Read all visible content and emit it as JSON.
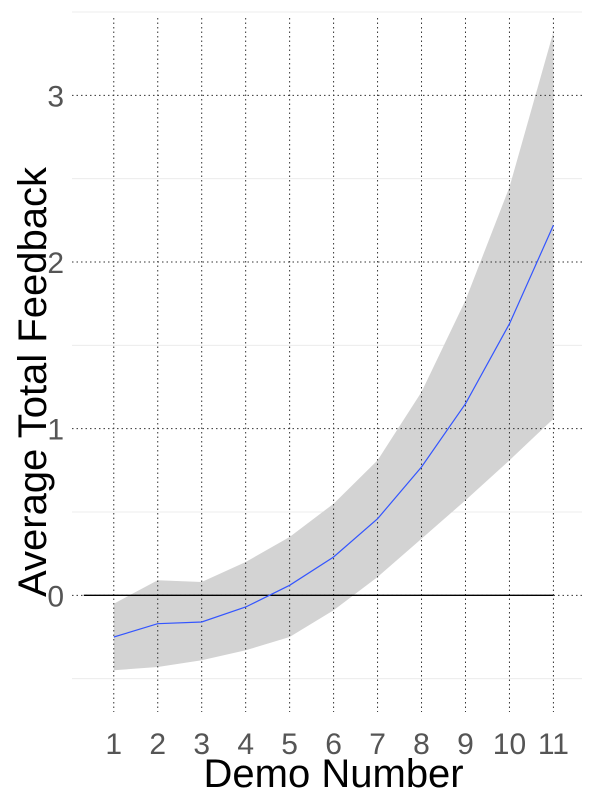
{
  "chart_data": {
    "type": "line",
    "title": "",
    "xlabel": "Demo Number",
    "ylabel": "Average Total Feedback",
    "x": [
      1,
      2,
      3,
      4,
      5,
      6,
      7,
      8,
      9,
      10,
      11
    ],
    "x_tick_labels": [
      "1",
      "2",
      "3",
      "4",
      "5",
      "6",
      "7",
      "8",
      "9",
      "10",
      "11"
    ],
    "y_tick_labels": [
      "0",
      "1",
      "2",
      "3"
    ],
    "y_ticks": [
      0,
      1,
      2,
      3
    ],
    "xlim": [
      0.05,
      11.65
    ],
    "ylim": [
      -0.7,
      3.5
    ],
    "reference_line_y": 0,
    "series": [
      {
        "values": [
          -0.25,
          -0.17,
          -0.16,
          -0.07,
          0.06,
          0.23,
          0.46,
          0.77,
          1.15,
          1.63,
          2.22
        ],
        "lower": [
          -0.45,
          -0.43,
          -0.39,
          -0.33,
          -0.25,
          -0.09,
          0.11,
          0.34,
          0.57,
          0.81,
          1.06
        ],
        "upper": [
          -0.05,
          0.09,
          0.08,
          0.2,
          0.35,
          0.55,
          0.81,
          1.22,
          1.77,
          2.45,
          3.38
        ]
      }
    ],
    "colors": {
      "line": "#3355ff",
      "band": "#d3d3d3",
      "major_grid": "#333333",
      "minor_grid": "#ececec",
      "reference_line": "#000000"
    },
    "grid": true,
    "legend": "none"
  }
}
